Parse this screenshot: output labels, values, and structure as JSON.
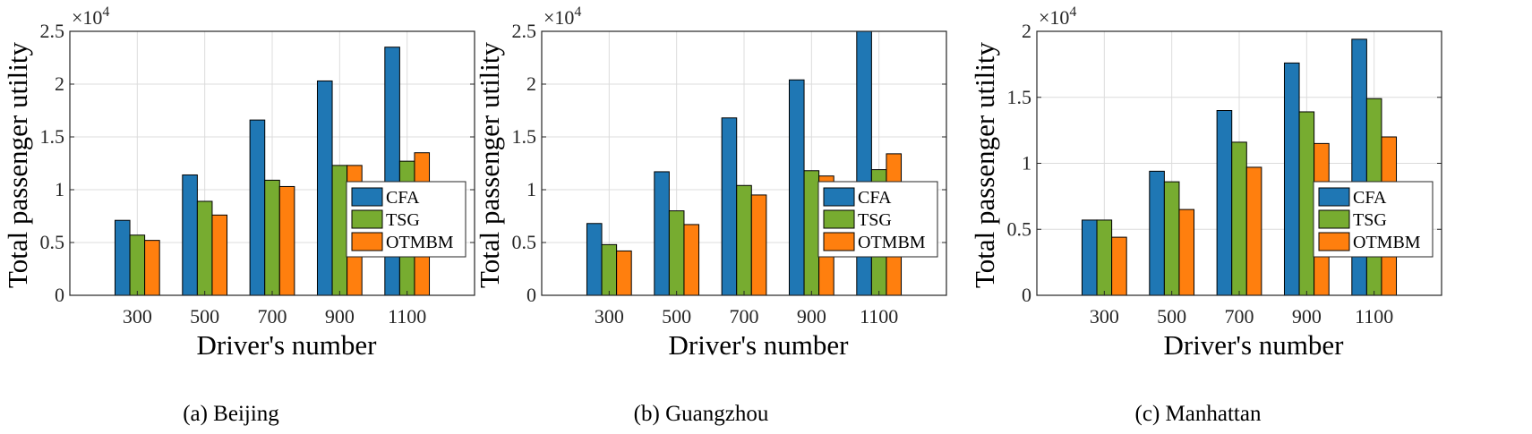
{
  "chart_data": [
    {
      "type": "bar",
      "caption": "(a) Beijing",
      "xlabel": "Driver's number",
      "ylabel": "Total passenger utility",
      "multiplier": "×10^4",
      "multiplier_base": "×10",
      "multiplier_exp": "4",
      "categories": [
        "300",
        "500",
        "700",
        "900",
        "1100"
      ],
      "ylim": [
        0,
        2.5
      ],
      "yticks": [
        "0",
        "0.5",
        "1",
        "1.5",
        "2",
        "2.5"
      ],
      "ytick_values": [
        0,
        0.5,
        1,
        1.5,
        2,
        2.5
      ],
      "grid": true,
      "legend_position": "lower-right",
      "series": [
        {
          "name": "CFA",
          "color": "#1f77b4",
          "values": [
            0.71,
            1.14,
            1.66,
            2.03,
            2.35
          ]
        },
        {
          "name": "TSG",
          "color": "#77ac30",
          "values": [
            0.57,
            0.89,
            1.09,
            1.23,
            1.27
          ]
        },
        {
          "name": "OTMBM",
          "color": "#ff7f0e",
          "values": [
            0.52,
            0.76,
            1.03,
            1.23,
            1.35
          ]
        }
      ]
    },
    {
      "type": "bar",
      "caption": "(b) Guangzhou",
      "xlabel": "Driver's number",
      "ylabel": "Total passenger utility",
      "multiplier": "×10^4",
      "multiplier_base": "×10",
      "multiplier_exp": "4",
      "categories": [
        "300",
        "500",
        "700",
        "900",
        "1100"
      ],
      "ylim": [
        0,
        2.5
      ],
      "yticks": [
        "0",
        "0.5",
        "1",
        "1.5",
        "2",
        "2.5"
      ],
      "ytick_values": [
        0,
        0.5,
        1,
        1.5,
        2,
        2.5
      ],
      "grid": true,
      "legend_position": "lower-right",
      "series": [
        {
          "name": "CFA",
          "color": "#1f77b4",
          "values": [
            0.68,
            1.17,
            1.68,
            2.04,
            2.5
          ]
        },
        {
          "name": "TSG",
          "color": "#77ac30",
          "values": [
            0.48,
            0.8,
            1.04,
            1.18,
            1.19
          ]
        },
        {
          "name": "OTMBM",
          "color": "#ff7f0e",
          "values": [
            0.42,
            0.67,
            0.95,
            1.13,
            1.34
          ]
        }
      ]
    },
    {
      "type": "bar",
      "caption": "(c) Manhattan",
      "xlabel": "Driver's number",
      "ylabel": "Total passenger utility",
      "multiplier": "×10^4",
      "multiplier_base": "×10",
      "multiplier_exp": "4",
      "categories": [
        "300",
        "500",
        "700",
        "900",
        "1100"
      ],
      "ylim": [
        0,
        2
      ],
      "yticks": [
        "0",
        "0.5",
        "1",
        "1.5",
        "2"
      ],
      "ytick_values": [
        0,
        0.5,
        1,
        1.5,
        2
      ],
      "grid": true,
      "legend_position": "lower-right",
      "series": [
        {
          "name": "CFA",
          "color": "#1f77b4",
          "values": [
            0.57,
            0.94,
            1.4,
            1.76,
            1.94
          ]
        },
        {
          "name": "TSG",
          "color": "#77ac30",
          "values": [
            0.57,
            0.86,
            1.16,
            1.39,
            1.49
          ]
        },
        {
          "name": "OTMBM",
          "color": "#ff7f0e",
          "values": [
            0.44,
            0.65,
            0.97,
            1.15,
            1.2
          ]
        }
      ]
    }
  ]
}
